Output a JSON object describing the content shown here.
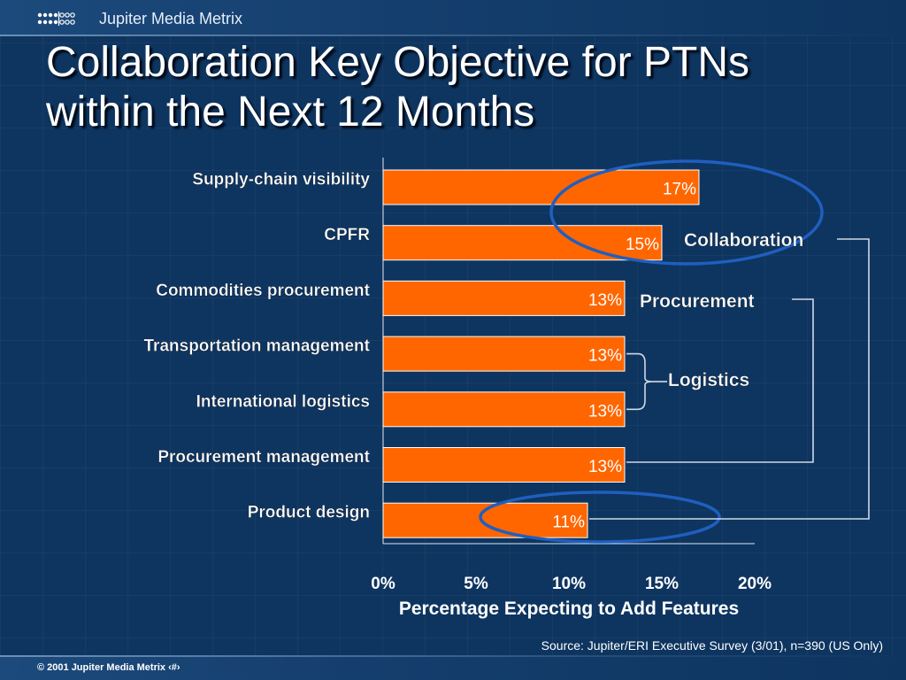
{
  "header": {
    "brand": "Jupiter Media Metrix"
  },
  "title": {
    "line1": "Collaboration Key Objective for PTNs",
    "line2": "within the Next 12 Months"
  },
  "source": "Source: Jupiter/ERI Executive Survey (3/01), n=390 (US Only)",
  "footer": "© 2001 Jupiter Media Metrix ‹#›",
  "colors": {
    "background": "#0e3560",
    "bar": "#ff6600",
    "bar_border": "#ffffff",
    "ellipse": "#1f5fbf",
    "bracket": "#cfd8e3"
  },
  "chart_data": {
    "type": "bar",
    "orientation": "horizontal",
    "categories": [
      "Supply-chain visibility",
      "CPFR",
      "Commodities procurement",
      "Transportation management",
      "International logistics",
      "Procurement management",
      "Product design"
    ],
    "values": [
      17,
      15,
      13,
      13,
      13,
      13,
      11
    ],
    "value_labels": [
      "17%",
      "15%",
      "13%",
      "13%",
      "13%",
      "13%",
      "11%"
    ],
    "xlim": [
      0,
      20
    ],
    "xticks": [
      "0%",
      "5%",
      "10%",
      "15%",
      "20%"
    ],
    "xlabel": "Percentage Expecting to Add Features",
    "grid": false,
    "annotations": [
      {
        "label": "Collaboration",
        "categories": [
          "Supply-chain visibility",
          "CPFR",
          "Product design"
        ]
      },
      {
        "label": "Procurement",
        "categories": [
          "Commodities procurement",
          "Procurement management"
        ]
      },
      {
        "label": "Logistics",
        "categories": [
          "Transportation management",
          "International logistics"
        ]
      }
    ]
  }
}
